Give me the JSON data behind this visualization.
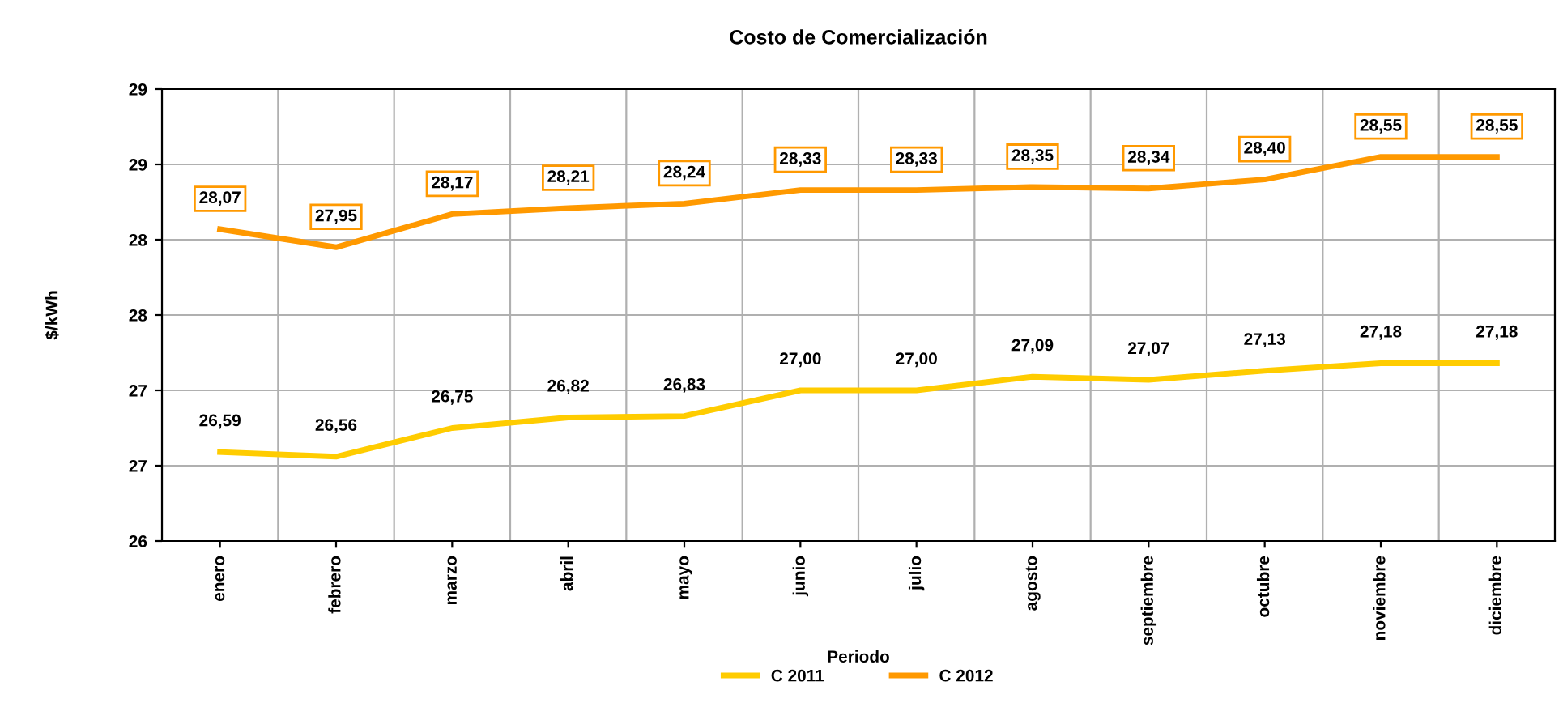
{
  "chart_data": {
    "type": "line",
    "title": "Costo de Comercialización",
    "xlabel": "Periodo",
    "ylabel": "$/kWh",
    "categories": [
      "enero",
      "febrero",
      "marzo",
      "abril",
      "mayo",
      "junio",
      "julio",
      "agosto",
      "septiembre",
      "octubre",
      "noviembre",
      "diciembre"
    ],
    "series": [
      {
        "name": "C 2011",
        "color": "#ffcc00",
        "values": [
          26.59,
          26.56,
          26.75,
          26.82,
          26.83,
          27.0,
          27.0,
          27.09,
          27.07,
          27.13,
          27.18,
          27.18
        ],
        "value_labels": [
          "26,59",
          "26,56",
          "26,75",
          "26,82",
          "26,83",
          "27,00",
          "27,00",
          "27,09",
          "27,07",
          "27,13",
          "27,18",
          "27,18"
        ]
      },
      {
        "name": "C 2012",
        "color": "#ff9900",
        "values": [
          28.07,
          27.95,
          28.17,
          28.21,
          28.24,
          28.33,
          28.33,
          28.35,
          28.34,
          28.4,
          28.55,
          28.55
        ],
        "value_labels": [
          "28,07",
          "27,95",
          "28,17",
          "28,21",
          "28,24",
          "28,33",
          "28,33",
          "28,35",
          "28,34",
          "28,40",
          "28,55",
          "28,55"
        ]
      }
    ],
    "ylim": [
      26,
      29
    ],
    "yticks": [
      26,
      {
        "value": 26.5,
        "label": "27"
      },
      27,
      {
        "value": 27.5,
        "label": "28"
      },
      28,
      {
        "value": 28.5,
        "label": "29"
      },
      29
    ],
    "grid": true,
    "legend": "bottom",
    "marker": "none",
    "line_style": "solid"
  }
}
